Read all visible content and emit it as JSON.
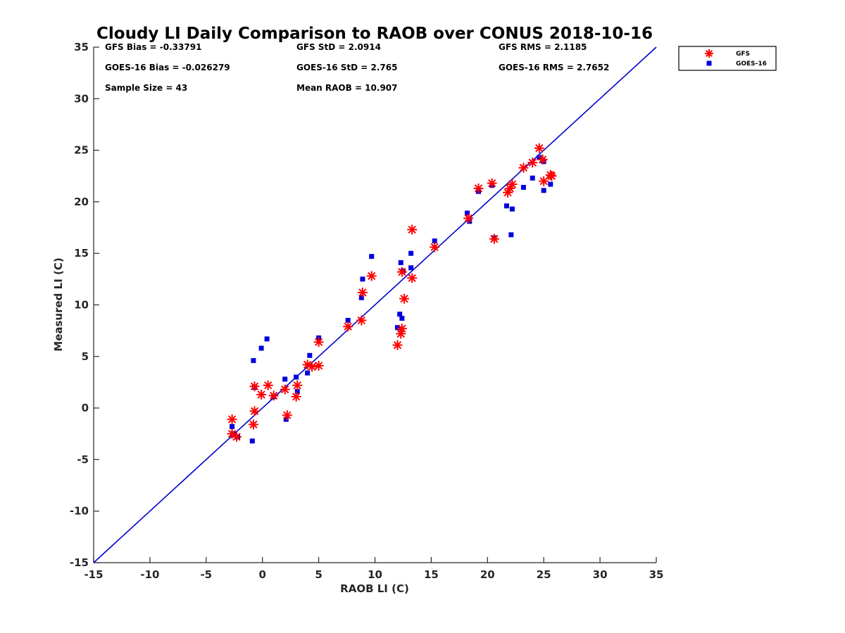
{
  "chart_data": {
    "type": "scatter",
    "title": "Cloudy LI Daily Comparison to RAOB over CONUS 2018-10-16",
    "xlabel": "RAOB LI (C)",
    "ylabel": "Measured LI (C)",
    "xlim": [
      -15,
      35
    ],
    "ylim": [
      -15,
      35
    ],
    "xticks": [
      -15,
      -10,
      -5,
      0,
      5,
      10,
      15,
      20,
      25,
      30,
      35
    ],
    "yticks": [
      -15,
      -10,
      -5,
      0,
      5,
      10,
      15,
      20,
      25,
      30,
      35
    ],
    "grid": false,
    "legend_position": "outside-top-right",
    "reference_line": {
      "from": [
        -15,
        -15
      ],
      "to": [
        35,
        35
      ],
      "color": "#0000cc"
    },
    "stats": [
      [
        "GFS Bias = -0.33791",
        "GFS StD = 2.0914",
        "GFS RMS = 2.1185"
      ],
      [
        "GOES-16 Bias = -0.026279",
        "GOES-16 StD = 2.765",
        "GOES-16 RMS = 2.7652"
      ],
      [
        "Sample Size = 43",
        "Mean RAOB = 10.907",
        ""
      ]
    ],
    "series": [
      {
        "name": "GFS",
        "marker": "asterisk",
        "color": "#ff0000",
        "points": [
          [
            -2.7,
            -1.1
          ],
          [
            -2.7,
            -2.5
          ],
          [
            -2.3,
            -2.8
          ],
          [
            -0.8,
            -1.6
          ],
          [
            -0.7,
            -0.3
          ],
          [
            -0.7,
            2.1
          ],
          [
            -0.1,
            1.3
          ],
          [
            0.5,
            2.2
          ],
          [
            1.0,
            1.2
          ],
          [
            2.0,
            1.8
          ],
          [
            2.2,
            -0.7
          ],
          [
            3.0,
            1.1
          ],
          [
            3.1,
            2.2
          ],
          [
            4.0,
            4.2
          ],
          [
            4.4,
            4.0
          ],
          [
            5.0,
            4.1
          ],
          [
            5.0,
            6.4
          ],
          [
            7.6,
            7.9
          ],
          [
            8.8,
            8.5
          ],
          [
            8.9,
            11.2
          ],
          [
            9.7,
            12.8
          ],
          [
            12.0,
            6.1
          ],
          [
            12.3,
            7.2
          ],
          [
            12.4,
            7.7
          ],
          [
            12.4,
            13.2
          ],
          [
            12.6,
            10.6
          ],
          [
            13.3,
            12.6
          ],
          [
            13.3,
            17.3
          ],
          [
            15.3,
            15.6
          ],
          [
            18.3,
            18.4
          ],
          [
            19.2,
            21.3
          ],
          [
            20.4,
            21.8
          ],
          [
            20.6,
            16.4
          ],
          [
            21.8,
            20.9
          ],
          [
            22.0,
            21.3
          ],
          [
            22.2,
            21.7
          ],
          [
            23.2,
            23.3
          ],
          [
            24.0,
            23.8
          ],
          [
            24.6,
            25.2
          ],
          [
            24.9,
            24.1
          ],
          [
            25.0,
            22.0
          ],
          [
            25.6,
            22.6
          ],
          [
            25.7,
            22.5
          ]
        ]
      },
      {
        "name": "GOES-16",
        "marker": "square",
        "color": "#0000dd",
        "points": [
          [
            -2.7,
            -1.8
          ],
          [
            -2.6,
            -2.5
          ],
          [
            -2.2,
            -2.8
          ],
          [
            -0.9,
            -3.2
          ],
          [
            -0.8,
            4.6
          ],
          [
            -0.7,
            2.0
          ],
          [
            -0.1,
            5.8
          ],
          [
            0.4,
            6.7
          ],
          [
            1.0,
            1.1
          ],
          [
            2.0,
            2.8
          ],
          [
            2.1,
            -1.1
          ],
          [
            3.0,
            3.0
          ],
          [
            3.1,
            1.6
          ],
          [
            4.0,
            3.4
          ],
          [
            4.2,
            5.1
          ],
          [
            5.0,
            6.8
          ],
          [
            7.6,
            8.5
          ],
          [
            8.8,
            10.7
          ],
          [
            8.9,
            12.5
          ],
          [
            9.7,
            14.7
          ],
          [
            12.0,
            7.8
          ],
          [
            12.2,
            9.1
          ],
          [
            12.3,
            14.1
          ],
          [
            12.4,
            8.7
          ],
          [
            12.5,
            13.3
          ],
          [
            13.2,
            15.0
          ],
          [
            13.2,
            13.6
          ],
          [
            15.3,
            16.2
          ],
          [
            18.2,
            18.9
          ],
          [
            18.4,
            18.1
          ],
          [
            19.2,
            21.0
          ],
          [
            20.4,
            21.6
          ],
          [
            20.6,
            16.5
          ],
          [
            21.7,
            19.6
          ],
          [
            22.1,
            16.8
          ],
          [
            22.2,
            19.3
          ],
          [
            23.2,
            21.4
          ],
          [
            24.0,
            22.3
          ],
          [
            24.6,
            24.3
          ],
          [
            25.0,
            23.9
          ],
          [
            25.0,
            21.1
          ],
          [
            25.6,
            21.7
          ],
          [
            24.9,
            24.0
          ]
        ]
      }
    ]
  }
}
